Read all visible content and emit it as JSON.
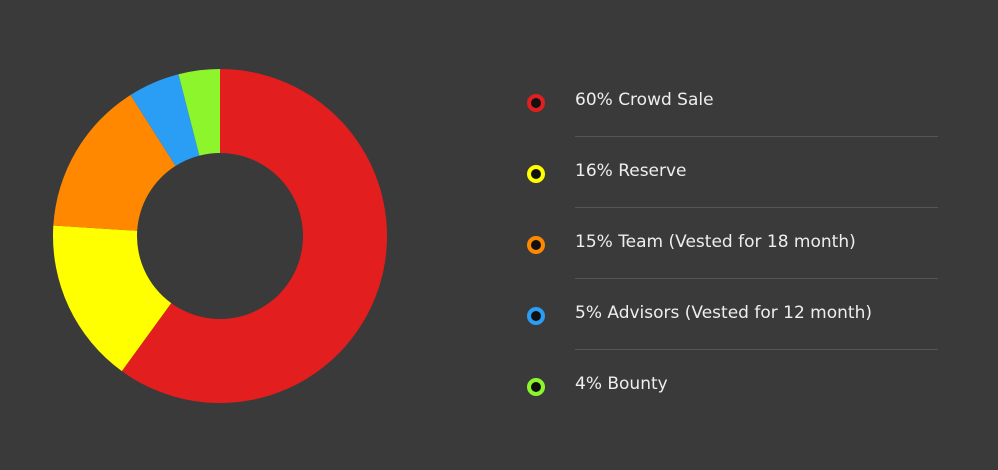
{
  "chart_data": {
    "type": "pie",
    "donut": true,
    "start": "top",
    "direction": "clockwise",
    "slices": [
      {
        "label": "60% Crowd Sale",
        "value": 60,
        "color": "#e31e1e"
      },
      {
        "label": "16% Reserve",
        "value": 16,
        "color": "#ffff00"
      },
      {
        "label": "15% Team (Vested for 18 month)",
        "value": 15,
        "color": "#ff8800"
      },
      {
        "label": "5% Advisors (Vested for 12 month)",
        "value": 5,
        "color": "#2a9df4"
      },
      {
        "label": "4% Bounty",
        "value": 4,
        "color": "#8cf52c"
      }
    ],
    "legend_position": "right"
  }
}
